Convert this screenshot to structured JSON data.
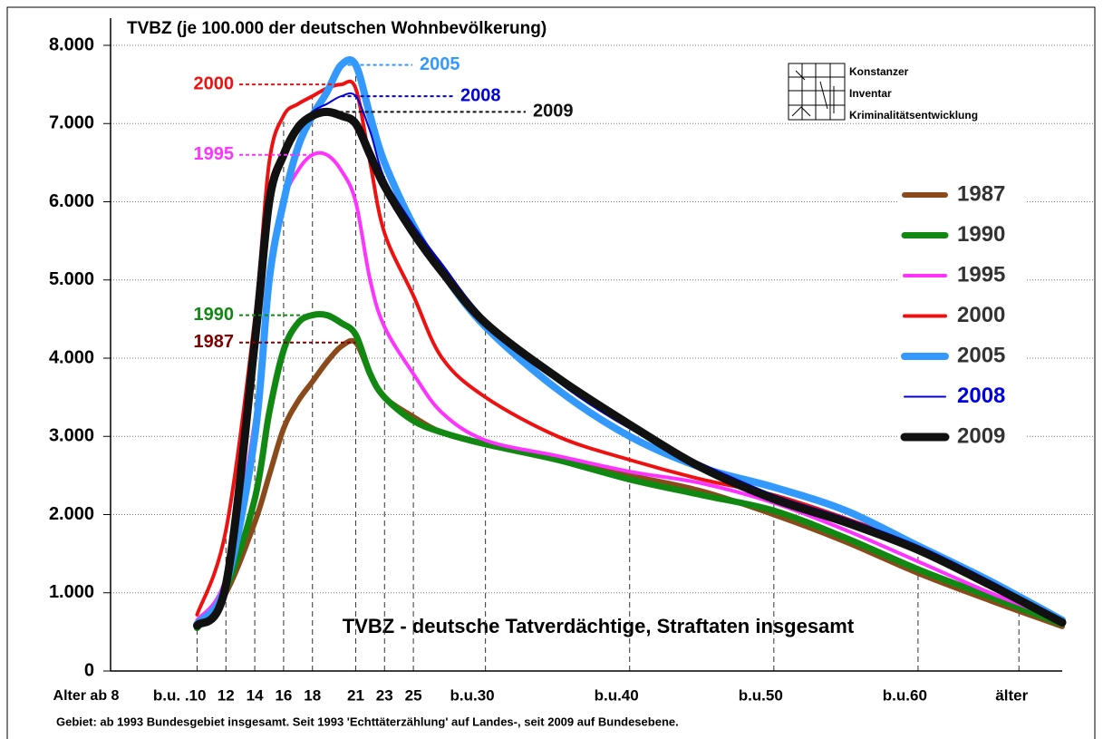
{
  "chart_data": {
    "type": "line",
    "title": "TVBZ (je 100.000 der deutschen Wohnbevölkerung)",
    "subtitle": "TVBZ - deutsche Tatverdächtige, Straftaten insgesamt",
    "footnote": "Gebiet: ab 1993 Bundesgebiet insgesamt. Seit 1993 'Echttäterzählung' auf Landes-, seit 2009 auf Bundesebene.",
    "x_label": "Alter ab 8",
    "logo": [
      "Konstanzer",
      "Inventar",
      "Kriminalitätsentwicklung"
    ],
    "x": [
      10,
      12,
      14,
      15,
      16,
      17,
      18,
      19,
      20,
      21,
      22,
      23,
      25,
      27,
      30,
      35,
      40,
      45,
      50,
      55,
      60,
      65,
      70
    ],
    "series": [
      {
        "name": "1987",
        "color": "#8b4a1c",
        "label_color": "#800000",
        "width": 6,
        "annotation_side": "left",
        "values": [
          550,
          1000,
          1900,
          2500,
          3100,
          3450,
          3700,
          3950,
          4150,
          4200,
          3800,
          3500,
          3250,
          3050,
          2900,
          2700,
          2500,
          2300,
          2000,
          1650,
          1250,
          900,
          570
        ]
      },
      {
        "name": "1990",
        "color": "#118811",
        "label_color": "#118811",
        "width": 7,
        "annotation_side": "left",
        "values": [
          550,
          1050,
          2200,
          3300,
          4100,
          4450,
          4550,
          4550,
          4450,
          4300,
          3800,
          3500,
          3200,
          3050,
          2900,
          2700,
          2450,
          2250,
          2050,
          1700,
          1300,
          950,
          600
        ]
      },
      {
        "name": "1995",
        "color": "#ff33ff",
        "label_color": "#ff33ff",
        "width": 4,
        "annotation_side": "left",
        "values": [
          650,
          1200,
          3200,
          5000,
          6000,
          6400,
          6600,
          6600,
          6400,
          6000,
          5000,
          4400,
          3800,
          3300,
          2950,
          2750,
          2550,
          2400,
          2150,
          1800,
          1400,
          1000,
          650
        ]
      },
      {
        "name": "2000",
        "color": "#ee1111",
        "label_color": "#ee1111",
        "width": 4,
        "annotation_side": "left",
        "values": [
          720,
          1800,
          4500,
          6500,
          7100,
          7250,
          7350,
          7450,
          7500,
          7450,
          6500,
          5600,
          4800,
          4000,
          3500,
          3000,
          2700,
          2450,
          2250,
          1950,
          1600,
          1150,
          650
        ]
      },
      {
        "name": "2005",
        "color": "#3399ff",
        "label_color": "#3399ff",
        "width": 8,
        "annotation_side": "right",
        "values": [
          600,
          1100,
          3000,
          5000,
          6000,
          6700,
          7100,
          7400,
          7750,
          7750,
          7100,
          6500,
          5700,
          5100,
          4400,
          3600,
          3000,
          2600,
          2350,
          2050,
          1600,
          1150,
          650
        ]
      },
      {
        "name": "2008",
        "color": "#0000dd",
        "label_color": "#0000dd",
        "width": 2,
        "annotation_side": "right",
        "values": [
          600,
          1150,
          4200,
          6000,
          6600,
          6900,
          7150,
          7250,
          7350,
          7350,
          6900,
          6300,
          5700,
          5200,
          4500,
          3700,
          3100,
          2650,
          2250,
          1950,
          1600,
          1150,
          650
        ]
      },
      {
        "name": "2009",
        "color": "#111111",
        "label_color": "#111111",
        "width": 9,
        "annotation_side": "right",
        "values": [
          580,
          1100,
          4200,
          6000,
          6600,
          6950,
          7100,
          7150,
          7100,
          7000,
          6600,
          6200,
          5600,
          5100,
          4450,
          3750,
          3150,
          2600,
          2200,
          1900,
          1550,
          1100,
          620
        ]
      }
    ],
    "xlim": [
      4,
      70
    ],
    "xticks": [
      {
        "value": 10,
        "label": "b.u. .10"
      },
      12,
      14,
      16,
      18,
      21,
      23,
      25,
      {
        "value": 30,
        "label": "b.u.30"
      },
      {
        "value": 40,
        "label": "b.u.40"
      },
      {
        "value": 50,
        "label": "b.u.50"
      },
      {
        "value": 60,
        "label": "b.u.60"
      },
      {
        "value": 67,
        "label": "älter"
      }
    ],
    "ylim": [
      0,
      8000
    ],
    "yticks": [
      0,
      {
        "value": 1000,
        "label": "1.000"
      },
      {
        "value": 2000,
        "label": "2.000"
      },
      {
        "value": 3000,
        "label": "3.000"
      },
      {
        "value": 4000,
        "label": "4.000"
      },
      {
        "value": 5000,
        "label": "5.000"
      },
      {
        "value": 6000,
        "label": "6.000"
      },
      {
        "value": 7000,
        "label": "7.000"
      },
      {
        "value": 8000,
        "label": "8.000"
      }
    ],
    "grid": true,
    "legend": "right"
  }
}
